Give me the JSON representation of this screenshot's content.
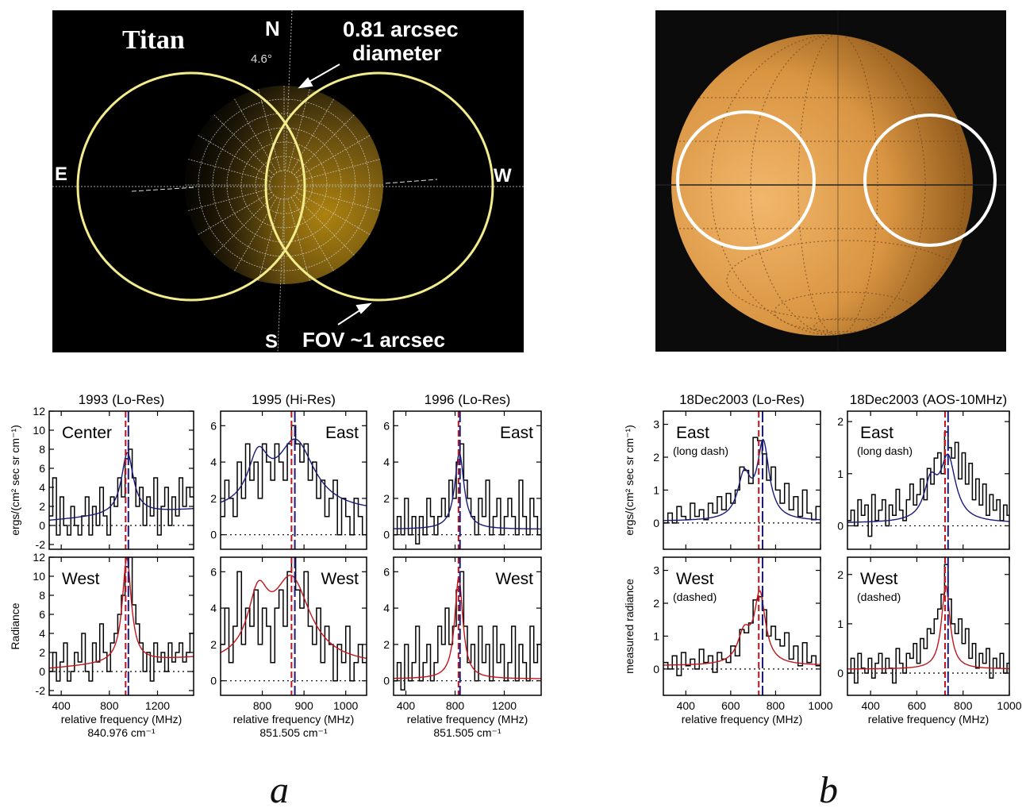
{
  "panel_a_image": {
    "title": "Titan",
    "north": "N",
    "south": "S",
    "east": "E",
    "west": "W",
    "angle": "4.6°",
    "disk_label_line1": "0.81 arcsec",
    "disk_label_line2": "diameter",
    "fov_label": "FOV ~1 arcsec"
  },
  "panel_labels": {
    "a": "a",
    "b": "b"
  },
  "chart_data": [
    {
      "type": "line",
      "id": "1993-center",
      "title": "1993 (Lo-Res)",
      "annotation": "Center",
      "ylabel": "ergs/(cm² sec sr cm⁻¹)",
      "xlim": [
        300,
        1500
      ],
      "ylim": [
        -2.5,
        12
      ],
      "xticks": [
        400,
        800,
        1200
      ],
      "yticks": [
        -2,
        0,
        2,
        4,
        6,
        8,
        10,
        12
      ],
      "fit_color": "#1a1a7a",
      "v_red": 935,
      "v_blue": 958,
      "fit_params": {
        "base": 0.5,
        "slope": 0.001,
        "x0": 950,
        "amp": 6.5,
        "w": 60
      },
      "series_x": [
        300,
        330,
        360,
        390,
        420,
        450,
        480,
        510,
        540,
        570,
        600,
        630,
        660,
        690,
        720,
        750,
        780,
        810,
        840,
        870,
        900,
        930,
        960,
        990,
        1020,
        1050,
        1080,
        1110,
        1140,
        1170,
        1200,
        1230,
        1260,
        1290,
        1320,
        1350,
        1380,
        1410,
        1440,
        1470
      ],
      "series_y": [
        1,
        5,
        -1,
        3,
        0,
        -1,
        2,
        0,
        -1,
        1,
        3,
        -1,
        2,
        0,
        4,
        1,
        -1,
        3,
        2,
        5,
        3,
        7,
        8,
        5,
        2,
        4,
        0,
        3,
        1,
        5,
        -1,
        2,
        4,
        0,
        3,
        1,
        5,
        2,
        4,
        3
      ]
    },
    {
      "type": "line",
      "id": "1993-west",
      "annotation": "West",
      "ylabel": "Radiance",
      "xlim": [
        300,
        1500
      ],
      "ylim": [
        -2.5,
        12
      ],
      "xticks": [
        400,
        800,
        1200
      ],
      "yticks": [
        -2,
        0,
        2,
        4,
        6,
        8,
        10,
        12
      ],
      "xlabel": "relative frequency (MHz)",
      "subcaption": "840.976 cm⁻¹",
      "fit_color": "#c0161b",
      "v_red": 935,
      "v_blue": 958,
      "fit_params": {
        "base": 0.3,
        "slope": 0.001,
        "x0": 945,
        "amp": 11,
        "w": 45
      },
      "series_x": [
        300,
        330,
        360,
        390,
        420,
        450,
        480,
        510,
        540,
        570,
        600,
        630,
        660,
        690,
        720,
        750,
        780,
        810,
        840,
        870,
        900,
        930,
        960,
        990,
        1020,
        1050,
        1080,
        1110,
        1140,
        1170,
        1200,
        1230,
        1260,
        1290,
        1320,
        1350,
        1380,
        1410,
        1440,
        1470
      ],
      "series_y": [
        0,
        2,
        -1,
        1,
        3,
        -1,
        0,
        2,
        1,
        4,
        0,
        -1,
        3,
        1,
        5,
        2,
        0,
        3,
        4,
        6,
        8,
        11,
        12,
        7,
        5,
        3,
        0,
        2,
        -1,
        3,
        1,
        2,
        0,
        3,
        1,
        2,
        3,
        1,
        2,
        4
      ]
    },
    {
      "type": "line",
      "id": "1995-east",
      "title": "1995 (Hi-Res)",
      "annotation": "East",
      "xlim": [
        700,
        1050
      ],
      "ylim": [
        -0.8,
        6.8
      ],
      "xticks": [
        800,
        900,
        1000
      ],
      "yticks": [
        0,
        2,
        4,
        6
      ],
      "fit_color": "#1a1a7a",
      "v_red": 870,
      "v_blue": 878,
      "fit_params": {
        "base": 1.2,
        "x1": 790,
        "a1": 2.6,
        "w1": 30,
        "x0": 880,
        "amp": 3.8,
        "w": 55
      },
      "series_x": [
        700,
        710,
        720,
        730,
        740,
        750,
        760,
        770,
        780,
        790,
        800,
        810,
        820,
        830,
        840,
        850,
        860,
        870,
        880,
        890,
        900,
        910,
        920,
        930,
        940,
        950,
        960,
        970,
        980,
        990,
        1000,
        1010,
        1020,
        1030,
        1040
      ],
      "series_y": [
        1,
        3,
        2,
        1,
        4,
        2,
        5,
        3,
        4,
        2,
        5,
        4,
        3,
        5,
        4,
        3,
        5,
        6,
        5,
        4,
        5,
        3,
        4,
        2,
        3,
        1,
        2,
        3,
        0,
        2,
        1,
        0,
        2,
        1,
        0
      ]
    },
    {
      "type": "line",
      "id": "1995-west",
      "annotation": "West",
      "xlim": [
        700,
        1050
      ],
      "ylim": [
        -0.8,
        6.8
      ],
      "xticks": [
        800,
        900,
        1000
      ],
      "yticks": [
        0,
        2,
        4,
        6
      ],
      "xlabel": "relative frequency (MHz)",
      "subcaption": "851.505 cm⁻¹",
      "fit_color": "#c0161b",
      "v_red": 870,
      "v_blue": 878,
      "fit_params": {
        "base": 0.8,
        "x1": 790,
        "a1": 3.2,
        "w1": 30,
        "x0": 870,
        "amp": 4.6,
        "w": 55
      },
      "series_x": [
        700,
        710,
        720,
        730,
        740,
        750,
        760,
        770,
        780,
        790,
        800,
        810,
        820,
        830,
        840,
        850,
        860,
        870,
        880,
        890,
        900,
        910,
        920,
        930,
        940,
        950,
        960,
        970,
        980,
        990,
        1000,
        1010,
        1020,
        1030,
        1040
      ],
      "series_y": [
        2,
        4,
        1,
        3,
        6,
        2,
        4,
        3,
        5,
        2,
        4,
        3,
        1,
        4,
        5,
        3,
        6,
        7,
        5,
        4,
        6,
        3,
        2,
        4,
        1,
        3,
        2,
        0,
        2,
        1,
        3,
        0,
        1,
        2,
        1
      ]
    },
    {
      "type": "line",
      "id": "1996-east",
      "title": "1996 (Lo-Res)",
      "annotation": "East",
      "xlim": [
        300,
        1500
      ],
      "ylim": [
        -0.8,
        6.8
      ],
      "xticks": [
        400,
        800,
        1200
      ],
      "yticks": [
        0,
        2,
        4,
        6
      ],
      "fit_color": "#1a1a7a",
      "v_red": 828,
      "v_blue": 840,
      "fit_params": {
        "base": 0.3,
        "x0": 835,
        "amp": 4.2,
        "w": 45
      },
      "series_x": [
        300,
        330,
        360,
        390,
        420,
        450,
        480,
        510,
        540,
        570,
        600,
        630,
        660,
        690,
        720,
        750,
        780,
        810,
        840,
        870,
        900,
        930,
        960,
        990,
        1020,
        1050,
        1080,
        1110,
        1140,
        1170,
        1200,
        1230,
        1260,
        1290,
        1320,
        1350,
        1380,
        1410,
        1440,
        1470
      ],
      "series_y": [
        0,
        1,
        0,
        2,
        0,
        1,
        -0.5,
        1,
        0,
        2,
        1,
        0,
        1,
        2,
        1,
        3,
        2,
        4,
        5,
        3,
        2,
        1,
        0,
        2,
        1,
        3,
        0,
        1,
        2,
        0,
        1,
        2,
        1,
        0,
        3,
        1,
        0,
        2,
        1,
        0
      ]
    },
    {
      "type": "line",
      "id": "1996-west",
      "annotation": "West",
      "xlim": [
        300,
        1500
      ],
      "ylim": [
        -0.8,
        6.8
      ],
      "xticks": [
        400,
        800,
        1200
      ],
      "yticks": [
        0,
        2,
        4,
        6
      ],
      "xlabel": "relative frequency (MHz)",
      "subcaption": "851.505 cm⁻¹",
      "fit_color": "#c0161b",
      "v_red": 828,
      "v_blue": 840,
      "fit_params": {
        "base": 0.1,
        "x0": 830,
        "amp": 5.6,
        "w": 40
      },
      "series_x": [
        300,
        330,
        360,
        390,
        420,
        450,
        480,
        510,
        540,
        570,
        600,
        630,
        660,
        690,
        720,
        750,
        780,
        810,
        840,
        870,
        900,
        930,
        960,
        990,
        1020,
        1050,
        1080,
        1110,
        1140,
        1170,
        1200,
        1230,
        1260,
        1290,
        1320,
        1350,
        1380,
        1410,
        1440,
        1470
      ],
      "series_y": [
        0,
        1,
        -0.5,
        2,
        0,
        1,
        3,
        0,
        1,
        2,
        0,
        1,
        3,
        2,
        4,
        2,
        3,
        5,
        6,
        3,
        1,
        2,
        0,
        3,
        1,
        2,
        0,
        3,
        1,
        2,
        0,
        1,
        3,
        0,
        2,
        1,
        0,
        3,
        1,
        2
      ]
    },
    {
      "type": "line",
      "id": "2003-lores-east",
      "title": "18Dec2003 (Lo-Res)",
      "annotation": "East",
      "annotation2": "(long dash)",
      "ylabel": "ergs/(cm² sec sr cm⁻¹)",
      "xlim": [
        300,
        1000
      ],
      "ylim": [
        -0.8,
        3.4
      ],
      "xticks": [
        400,
        600,
        800,
        1000
      ],
      "yticks": [
        0,
        1,
        2,
        3
      ],
      "fit_color": "#1a1a7a",
      "v_red": 725,
      "v_blue": 742,
      "fit_params": {
        "base": 0.05,
        "x1": 660,
        "a1": 1.3,
        "w1": 35,
        "x0": 745,
        "amp": 2.3,
        "w": 32
      },
      "series_x": [
        300,
        320,
        340,
        360,
        380,
        400,
        420,
        440,
        460,
        480,
        500,
        520,
        540,
        560,
        580,
        600,
        620,
        640,
        660,
        680,
        700,
        720,
        740,
        760,
        780,
        800,
        820,
        840,
        860,
        880,
        900,
        920,
        940,
        960,
        980
      ],
      "series_y": [
        0,
        0.3,
        0,
        0.5,
        0.2,
        0.1,
        0.6,
        0.2,
        0.4,
        0.1,
        0.6,
        0.3,
        0.8,
        0.4,
        0.9,
        0.6,
        1,
        1.7,
        1.6,
        1.2,
        2.6,
        2.5,
        2.1,
        1.3,
        1.7,
        1,
        0.6,
        1.2,
        0.4,
        0.8,
        0.2,
        1,
        0.3,
        0.1,
        0.5
      ]
    },
    {
      "type": "line",
      "id": "2003-lores-west",
      "annotation": "West",
      "annotation2": "(dashed)",
      "ylabel": "measured radiance",
      "xlim": [
        300,
        1000
      ],
      "ylim": [
        -0.8,
        3.4
      ],
      "xticks": [
        400,
        600,
        800,
        1000
      ],
      "yticks": [
        0,
        1,
        2,
        3
      ],
      "xlabel": "relative frequency (MHz)",
      "fit_color": "#c0161b",
      "v_red": 725,
      "v_blue": 742,
      "fit_params": {
        "base": 0.1,
        "x1": 660,
        "a1": 0.9,
        "w1": 35,
        "x0": 730,
        "amp": 2.1,
        "w": 30
      },
      "series_x": [
        300,
        320,
        340,
        360,
        380,
        400,
        420,
        440,
        460,
        480,
        500,
        520,
        540,
        560,
        580,
        600,
        620,
        640,
        660,
        680,
        700,
        720,
        740,
        760,
        780,
        800,
        820,
        840,
        860,
        880,
        900,
        920,
        940,
        960,
        980
      ],
      "series_y": [
        0.2,
        0,
        0.4,
        -0.2,
        0.5,
        0.1,
        0.3,
        0,
        0.6,
        0.2,
        0.4,
        -0.1,
        0.5,
        0.3,
        0.2,
        0.7,
        0.4,
        1.2,
        1.1,
        1.4,
        2.1,
        2.2,
        1.8,
        1,
        1.3,
        0.9,
        0.7,
        1.1,
        0.3,
        0.7,
        0.1,
        0.8,
        0.2,
        0.4,
        0.1
      ]
    },
    {
      "type": "line",
      "id": "2003-aos-east",
      "title": "18Dec2003 (AOS-10MHz)",
      "annotation": "East",
      "annotation2": "(long dash)",
      "xlim": [
        300,
        1000
      ],
      "ylim": [
        -0.45,
        2.2
      ],
      "xticks": [
        400,
        600,
        800,
        1000
      ],
      "yticks": [
        0,
        1,
        2
      ],
      "fit_color": "#1a1a7a",
      "v_red": 722,
      "v_blue": 735,
      "fit_params": {
        "base": 0.05,
        "x1": 660,
        "a1": 0.7,
        "w1": 35,
        "x0": 735,
        "amp": 1.2,
        "w": 40
      },
      "series_x": [
        300,
        315,
        330,
        345,
        360,
        375,
        390,
        405,
        420,
        435,
        450,
        465,
        480,
        495,
        510,
        525,
        540,
        555,
        570,
        585,
        600,
        615,
        630,
        645,
        660,
        675,
        690,
        705,
        720,
        735,
        750,
        765,
        780,
        795,
        810,
        825,
        840,
        855,
        870,
        885,
        900,
        915,
        930,
        945,
        960,
        975,
        990
      ],
      "series_y": [
        0.1,
        0.3,
        0,
        0.5,
        0.2,
        0.4,
        -0.2,
        0.6,
        0.1,
        0.3,
        0.5,
        0,
        0.4,
        0.2,
        0.7,
        0.3,
        0.1,
        0.5,
        0.8,
        0.4,
        0.6,
        0.9,
        0.5,
        1.1,
        0.8,
        1.3,
        1.4,
        1,
        1.8,
        1.5,
        1.3,
        1.6,
        0.9,
        1.4,
        0.8,
        1.2,
        0.5,
        0.9,
        0.4,
        0.8,
        0.2,
        0.6,
        0.3,
        0.5,
        0.1,
        0.4,
        0.2
      ]
    },
    {
      "type": "line",
      "id": "2003-aos-west",
      "annotation": "West",
      "annotation2": "(dashed)",
      "xlim": [
        300,
        1000
      ],
      "ylim": [
        -0.45,
        2.35
      ],
      "xticks": [
        400,
        600,
        800,
        1000
      ],
      "yticks": [
        0,
        1,
        2
      ],
      "xlabel": "relative frequency (MHz)",
      "fit_color": "#c0161b",
      "v_red": 722,
      "v_blue": 735,
      "fit_params": {
        "base": 0.08,
        "x0": 725,
        "amp": 1.7,
        "w": 22
      },
      "series_x": [
        300,
        315,
        330,
        345,
        360,
        375,
        390,
        405,
        420,
        435,
        450,
        465,
        480,
        495,
        510,
        525,
        540,
        555,
        570,
        585,
        600,
        615,
        630,
        645,
        660,
        675,
        690,
        705,
        720,
        735,
        750,
        765,
        780,
        795,
        810,
        825,
        840,
        855,
        870,
        885,
        900,
        915,
        930,
        945,
        960,
        975,
        990
      ],
      "series_y": [
        0,
        0.3,
        -0.2,
        0.4,
        0.1,
        0,
        0.3,
        -0.1,
        0.2,
        0.4,
        0,
        0.3,
        0.1,
        -0.2,
        0.5,
        0.2,
        0,
        0.4,
        0.3,
        0.6,
        0.2,
        0.7,
        0.5,
        0.9,
        0.8,
        1.1,
        1.3,
        1.6,
        2.2,
        1.5,
        1,
        0.8,
        1.1,
        0.6,
        0.9,
        0.3,
        0.6,
        0.1,
        0.4,
        0.2,
        0.5,
        -0.1,
        0.3,
        0.1,
        0.4,
        0,
        0.2
      ]
    }
  ]
}
